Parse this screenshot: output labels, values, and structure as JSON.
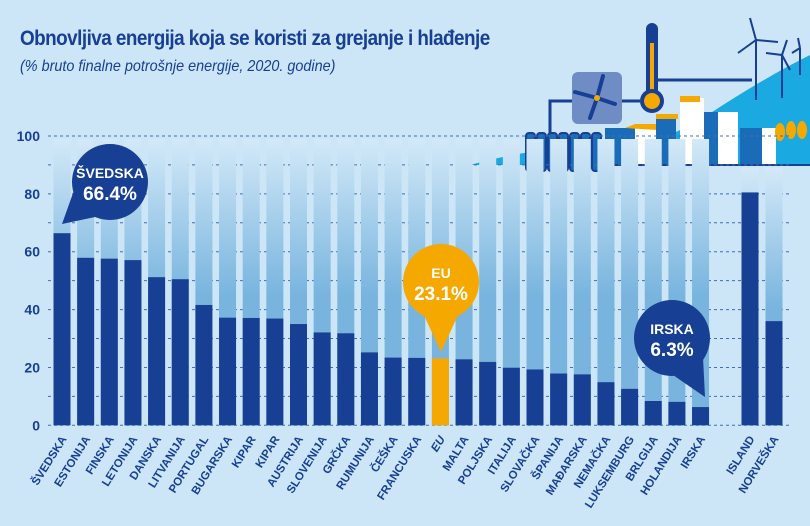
{
  "chart_data": {
    "type": "bar",
    "title": "Obnovljiva energija koja se koristi za grejanje i hlađenje",
    "subtitle": "(% bruto finalne potrošnje energije, 2020. godine)",
    "xlabel": "",
    "ylabel": "",
    "ylim": [
      0,
      100
    ],
    "yticks": [
      0,
      20,
      40,
      60,
      80,
      100
    ],
    "grid": true,
    "categories": [
      "ŠVEDSKA",
      "ESTONIJA",
      "FINSKA",
      "LETONIJA",
      "DANSKA",
      "LITVANIJA",
      "PORTUGAL",
      "BUGARSKA",
      "KIPAR",
      "KIPAR",
      "AUSTRIJA",
      "SLOVENIJA",
      "GRČKA",
      "RUMUNIJA",
      "ČEŠKA",
      "FRANCUSKA",
      "EU",
      "MALTA",
      "POLJSKA",
      "ITALIJA",
      "SLOVAČKA",
      "ŠPANIJA",
      "MAĐARSKA",
      "NEMAČKA",
      "LUKSEMBURG",
      "BRLGIJA",
      "HOLANDIJA",
      "IRSKA",
      "ISLAND",
      "NORVEŠKA"
    ],
    "values": [
      66.4,
      57.9,
      57.6,
      57.1,
      51.2,
      50.5,
      41.6,
      37.2,
      37.1,
      36.9,
      35.0,
      32.1,
      31.8,
      25.2,
      23.4,
      23.3,
      23.1,
      22.8,
      21.9,
      19.9,
      19.3,
      17.9,
      17.6,
      14.9,
      12.6,
      8.4,
      8.1,
      6.3,
      80.5,
      36.0
    ],
    "highlight": "EU",
    "callouts": [
      {
        "country": "ŠVEDSKA",
        "label": "66.4%"
      },
      {
        "country": "EU",
        "label": "23.1%"
      },
      {
        "country": "IRSKA",
        "label": "6.3%"
      }
    ],
    "colors": {
      "bar": "#173f94",
      "highlight": "#f5a800",
      "background": "#cce5f7",
      "track_top": "#d3e9f8",
      "track_bottom": "#78b4de"
    }
  }
}
